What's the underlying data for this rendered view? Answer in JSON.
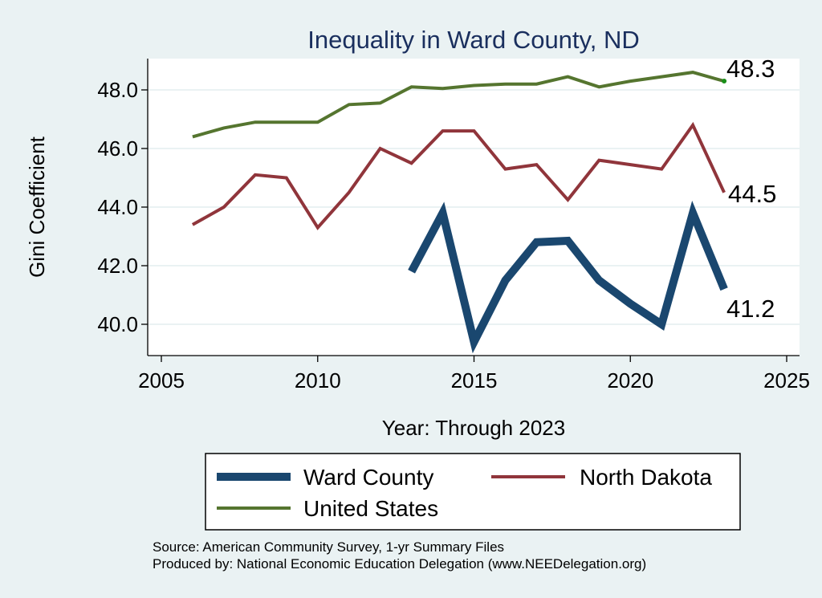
{
  "chart_data": {
    "type": "line",
    "title": "Inequality in Ward County, ND",
    "xlabel": "Year: Through 2023",
    "ylabel": "Gini Coefficient",
    "xlim": [
      2005,
      2025
    ],
    "ylim": [
      39,
      49
    ],
    "xticks": [
      2005,
      2010,
      2015,
      2020,
      2025
    ],
    "yticks": [
      40.0,
      42.0,
      44.0,
      46.0,
      48.0
    ],
    "ytick_labels": [
      "40.0",
      "42.0",
      "44.0",
      "46.0",
      "48.0"
    ],
    "grid": true,
    "series": [
      {
        "name": "Ward County",
        "color": "#1a476f",
        "x": [
          2013,
          2014,
          2015,
          2016,
          2017,
          2018,
          2019,
          2020,
          2021,
          2022,
          2023
        ],
        "values": [
          41.8,
          43.8,
          39.4,
          41.5,
          42.8,
          42.85,
          41.5,
          40.7,
          40.0,
          43.8,
          41.2
        ],
        "end_label": "41.2"
      },
      {
        "name": "North Dakota",
        "color": "#90353b",
        "x": [
          2006,
          2007,
          2008,
          2009,
          2010,
          2011,
          2012,
          2013,
          2014,
          2015,
          2016,
          2017,
          2018,
          2019,
          2020,
          2021,
          2022,
          2023
        ],
        "values": [
          43.4,
          44.0,
          45.1,
          45.0,
          43.3,
          44.5,
          46.0,
          45.5,
          46.6,
          46.6,
          45.3,
          45.45,
          44.25,
          45.6,
          45.45,
          45.3,
          46.8,
          44.5
        ],
        "end_label": "44.5"
      },
      {
        "name": "United States",
        "color": "#55752f",
        "x": [
          2006,
          2007,
          2008,
          2009,
          2010,
          2011,
          2012,
          2013,
          2014,
          2015,
          2016,
          2017,
          2018,
          2019,
          2020,
          2021,
          2022,
          2023
        ],
        "values": [
          46.4,
          46.7,
          46.9,
          46.9,
          46.9,
          47.5,
          47.55,
          48.1,
          48.05,
          48.15,
          48.2,
          48.2,
          48.45,
          48.1,
          48.3,
          48.45,
          48.6,
          48.3
        ],
        "end_label": "48.3"
      }
    ],
    "legend": {
      "position": "bottom",
      "entries": [
        "Ward County",
        "North Dakota",
        "United States"
      ]
    }
  },
  "notes": {
    "source": "Source: American Community Survey, 1-yr Summary Files",
    "produced_by": "Produced by: National Economic Education Delegation (www.NEEDelegation.org)"
  }
}
